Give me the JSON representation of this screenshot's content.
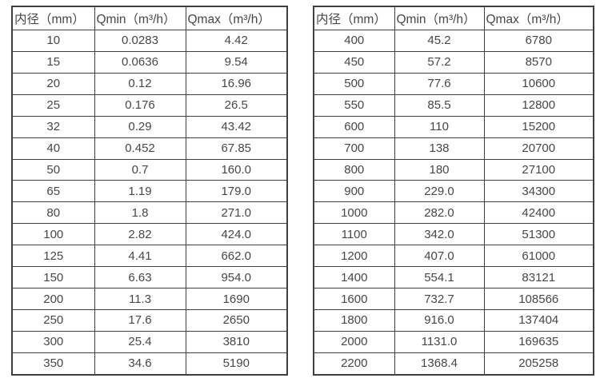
{
  "colors": {
    "background": "#ffffff",
    "border": "#3f3f3f",
    "text": "#474747"
  },
  "tables": [
    {
      "name": "flow-spec-table-small-diameters",
      "headers": [
        "内径（mm）",
        "Qmin（m³/h）",
        "Qmax（m³/h）"
      ],
      "rows": [
        [
          "10",
          "0.0283",
          "4.42"
        ],
        [
          "15",
          "0.0636",
          "9.54"
        ],
        [
          "20",
          "0.12",
          "16.96"
        ],
        [
          "25",
          "0.176",
          "26.5"
        ],
        [
          "32",
          "0.29",
          "43.42"
        ],
        [
          "40",
          "0.452",
          "67.85"
        ],
        [
          "50",
          "0.7",
          "160.0"
        ],
        [
          "65",
          "1.19",
          "179.0"
        ],
        [
          "80",
          "1.8",
          "271.0"
        ],
        [
          "100",
          "2.82",
          "424.0"
        ],
        [
          "125",
          "4.41",
          "662.0"
        ],
        [
          "150",
          "6.63",
          "954.0"
        ],
        [
          "200",
          "11.3",
          "1690"
        ],
        [
          "250",
          "17.6",
          "2650"
        ],
        [
          "300",
          "25.4",
          "3810"
        ],
        [
          "350",
          "34.6",
          "5190"
        ]
      ]
    },
    {
      "name": "flow-spec-table-large-diameters",
      "headers": [
        "内径（mm）",
        "Qmin（m³/h）",
        "Qmax（m³/h）"
      ],
      "rows": [
        [
          "400",
          "45.2",
          "6780"
        ],
        [
          "450",
          "57.2",
          "8570"
        ],
        [
          "500",
          "77.6",
          "10600"
        ],
        [
          "550",
          "85.5",
          "12800"
        ],
        [
          "600",
          "110",
          "15200"
        ],
        [
          "700",
          "138",
          "20700"
        ],
        [
          "800",
          "180",
          "27100"
        ],
        [
          "900",
          "229.0",
          "34300"
        ],
        [
          "1000",
          "282.0",
          "42400"
        ],
        [
          "1100",
          "342.0",
          "51300"
        ],
        [
          "1200",
          "407.0",
          "61000"
        ],
        [
          "1400",
          "554.1",
          "83121"
        ],
        [
          "1600",
          "732.7",
          "108566"
        ],
        [
          "1800",
          "916.0",
          "137404"
        ],
        [
          "2000",
          "1131.0",
          "169635"
        ],
        [
          "2200",
          "1368.4",
          "205258"
        ]
      ]
    }
  ]
}
